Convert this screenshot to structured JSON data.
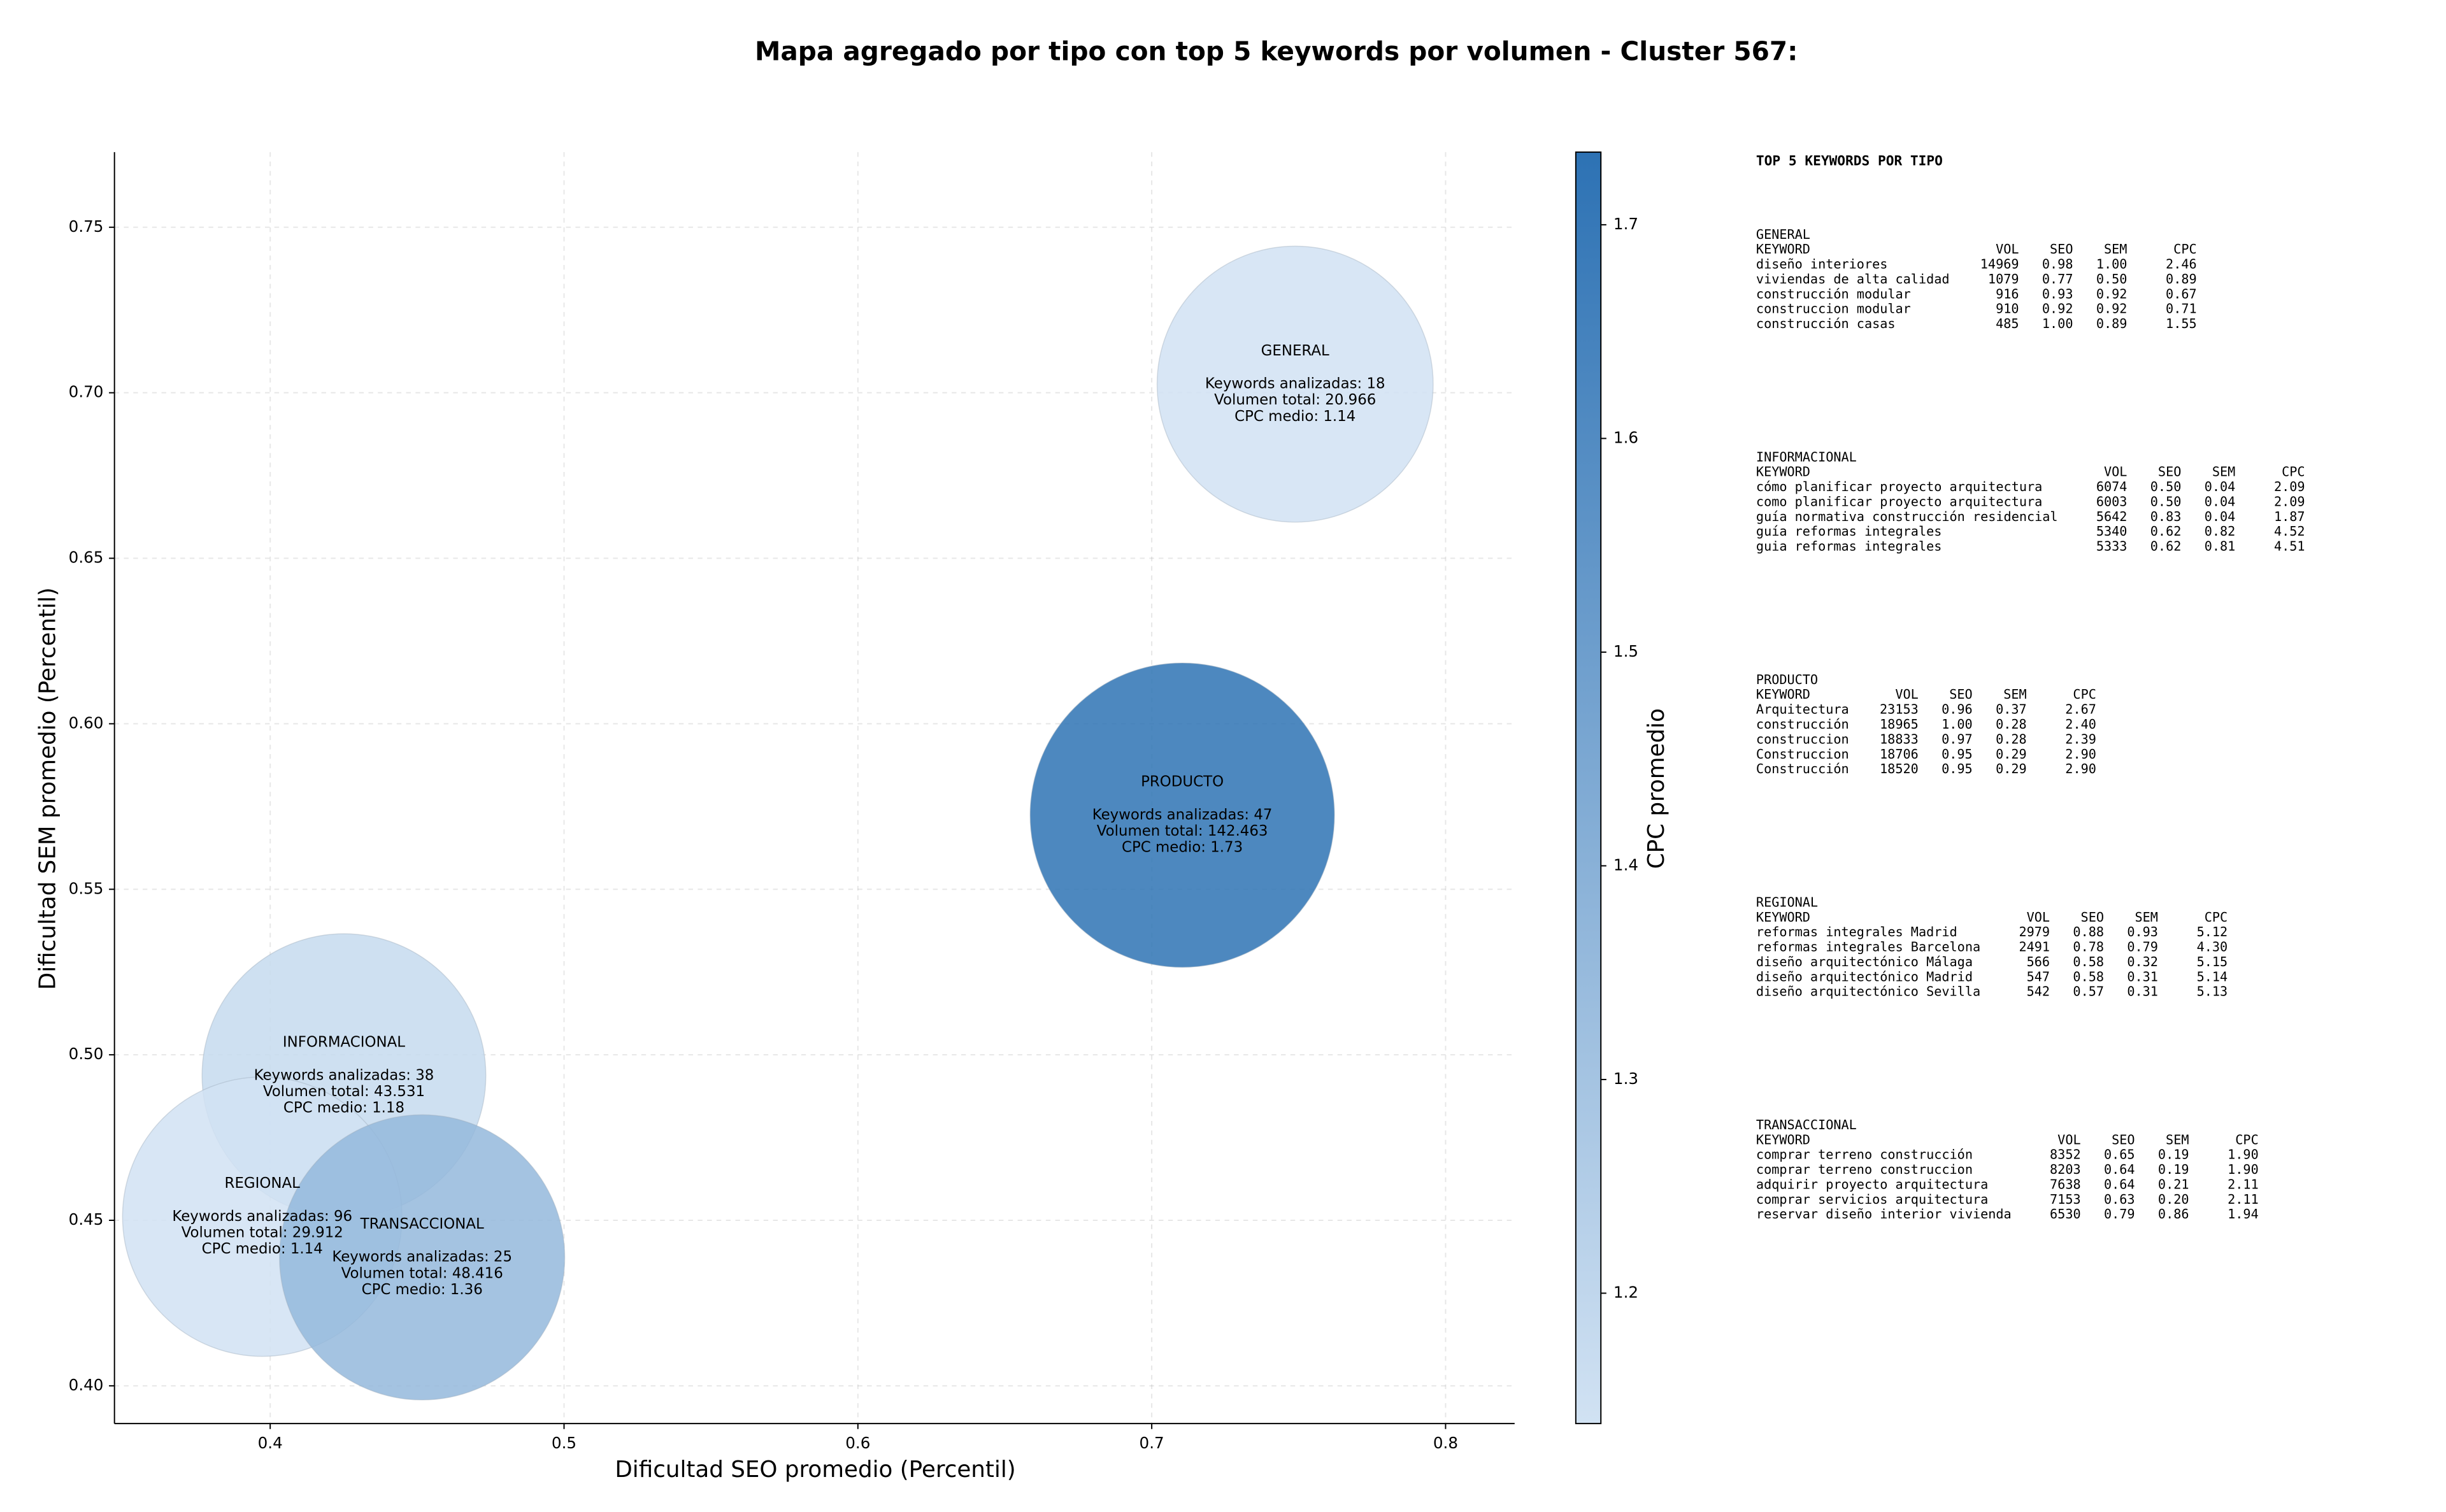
{
  "chart_data": {
    "type": "bubble",
    "title": "Mapa agregado por tipo con top 5 keywords por volumen - Cluster 567:",
    "x_label": "Dificultad SEO promedio (Percentil)",
    "y_label": "Dificultad SEM promedio (Percentil)",
    "xlim": [
      0.347,
      0.8235
    ],
    "ylim": [
      0.3886,
      0.7727
    ],
    "xticks": [
      0.4,
      0.5,
      0.6,
      0.7,
      0.8
    ],
    "yticks": [
      {
        "value": 0.4,
        "label": "0.40"
      },
      0.45,
      {
        "value": 0.5,
        "label": "0.50"
      },
      0.55,
      {
        "value": 0.6,
        "label": "0.60"
      },
      0.65,
      {
        "value": 0.7,
        "label": "0.70"
      },
      0.75
    ],
    "grid": true,
    "colorbar_label": "CPC promedio",
    "clim": [
      1.139,
      1.734
    ],
    "cticks": [
      1.2,
      1.3,
      1.4,
      1.5,
      1.6,
      1.7
    ],
    "colormap": [
      "#d1e2f3",
      "#2d72b4"
    ],
    "series": [
      {
        "name": "GENERAL",
        "x": 0.7488,
        "y": 0.7026,
        "size": 20966,
        "cpc": 1.14,
        "labels": [
          "Keywords analizadas: 18",
          "Volumen total: 20.966",
          "CPC medio: 1.14"
        ]
      },
      {
        "name": "INFORMACIONAL",
        "x": 0.4251,
        "y": 0.4937,
        "size": 43531,
        "cpc": 1.18,
        "labels": [
          "Keywords analizadas: 38",
          "Volumen total: 43.531",
          "CPC medio: 1.18"
        ]
      },
      {
        "name": "PRODUCTO",
        "x": 0.7104,
        "y": 0.5724,
        "size": 142463,
        "cpc": 1.73,
        "labels": [
          "Keywords analizadas: 47",
          "Volumen total: 142.463",
          "CPC medio: 1.73"
        ]
      },
      {
        "name": "REGIONAL",
        "x": 0.3973,
        "y": 0.4511,
        "size": 29912,
        "cpc": 1.14,
        "labels": [
          "Keywords analizadas: 96",
          "Volumen total: 29.912",
          "CPC medio: 1.14"
        ]
      },
      {
        "name": "TRANSACCIONAL",
        "x": 0.4517,
        "y": 0.4388,
        "size": 48416,
        "cpc": 1.36,
        "labels": [
          "Keywords analizadas: 25",
          "Volumen total: 48.416",
          "CPC medio: 1.36"
        ]
      }
    ]
  },
  "side_panel": {
    "title": "TOP 5 KEYWORDS POR TIPO",
    "columns": [
      "KEYWORD",
      "VOL",
      "SEO",
      "SEM",
      "CPC"
    ],
    "sections": [
      {
        "name": "GENERAL",
        "rows": [
          [
            "diseño interiores",
            "14969",
            "0.98",
            "1.00",
            "2.46"
          ],
          [
            "viviendas de alta calidad",
            "1079",
            "0.77",
            "0.50",
            "0.89"
          ],
          [
            "construcción modular",
            "916",
            "0.93",
            "0.92",
            "0.67"
          ],
          [
            "construccion modular",
            "910",
            "0.92",
            "0.92",
            "0.71"
          ],
          [
            "construcción casas",
            "485",
            "1.00",
            "0.89",
            "1.55"
          ]
        ]
      },
      {
        "name": "INFORMACIONAL",
        "rows": [
          [
            "cómo planificar proyecto arquitectura",
            "6074",
            "0.50",
            "0.04",
            "2.09"
          ],
          [
            "como planificar proyecto arquitectura",
            "6003",
            "0.50",
            "0.04",
            "2.09"
          ],
          [
            "guía normativa construcción residencial",
            "5642",
            "0.83",
            "0.04",
            "1.87"
          ],
          [
            "guía reformas integrales",
            "5340",
            "0.62",
            "0.82",
            "4.52"
          ],
          [
            "guia reformas integrales",
            "5333",
            "0.62",
            "0.81",
            "4.51"
          ]
        ]
      },
      {
        "name": "PRODUCTO",
        "rows": [
          [
            "Arquitectura",
            "23153",
            "0.96",
            "0.37",
            "2.67"
          ],
          [
            "construcción",
            "18965",
            "1.00",
            "0.28",
            "2.40"
          ],
          [
            "construccion",
            "18833",
            "0.97",
            "0.28",
            "2.39"
          ],
          [
            "Construccion",
            "18706",
            "0.95",
            "0.29",
            "2.90"
          ],
          [
            "Construcción",
            "18520",
            "0.95",
            "0.29",
            "2.90"
          ]
        ]
      },
      {
        "name": "REGIONAL",
        "rows": [
          [
            "reformas integrales Madrid",
            "2979",
            "0.88",
            "0.93",
            "5.12"
          ],
          [
            "reformas integrales Barcelona",
            "2491",
            "0.78",
            "0.79",
            "4.30"
          ],
          [
            "diseño arquitectónico Málaga",
            "566",
            "0.58",
            "0.32",
            "5.15"
          ],
          [
            "diseño arquitectónico Madrid",
            "547",
            "0.58",
            "0.31",
            "5.14"
          ],
          [
            "diseño arquitectónico Sevilla",
            "542",
            "0.57",
            "0.31",
            "5.13"
          ]
        ]
      },
      {
        "name": "TRANSACCIONAL",
        "rows": [
          [
            "comprar terreno construcción",
            "8352",
            "0.65",
            "0.19",
            "1.90"
          ],
          [
            "comprar terreno construccion",
            "8203",
            "0.64",
            "0.19",
            "1.90"
          ],
          [
            "adquirir proyecto arquitectura",
            "7638",
            "0.64",
            "0.21",
            "2.11"
          ],
          [
            "comprar servicios arquitectura",
            "7153",
            "0.63",
            "0.20",
            "2.11"
          ],
          [
            "reservar diseño interior vivienda",
            "6530",
            "0.79",
            "0.86",
            "1.94"
          ]
        ]
      }
    ]
  }
}
